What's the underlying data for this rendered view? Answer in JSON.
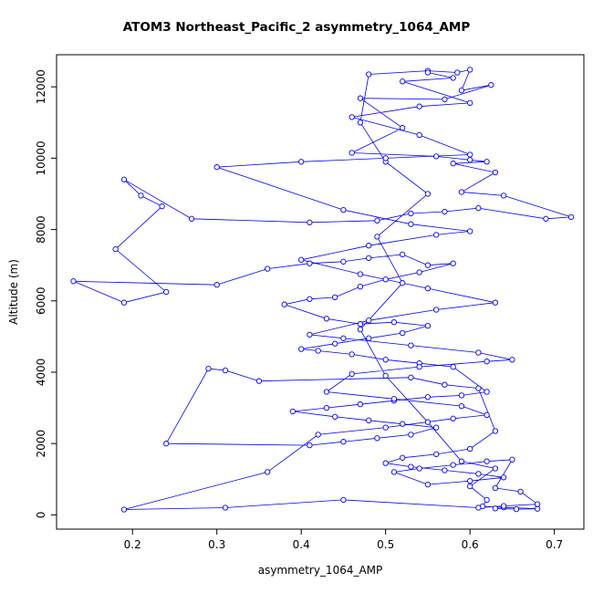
{
  "title": "ATOM3 Northeast_Pacific_2 asymmetry_1064_AMP",
  "chart_data": {
    "type": "line",
    "title": "ATOM3 Northeast_Pacific_2 asymmetry_1064_AMP",
    "xlabel": "asymmetry_1064_AMP",
    "ylabel": "Altitude (m)",
    "xlim": [
      0.11,
      0.735
    ],
    "ylim": [
      -400,
      12900
    ],
    "x_ticks": [
      "0.2",
      "0.3",
      "0.4",
      "0.5",
      "0.6",
      "0.7"
    ],
    "y_ticks": [
      "0",
      "2000",
      "4000",
      "6000",
      "8000",
      "10000",
      "12000"
    ],
    "grid": "off",
    "legend": "none",
    "marker": "open-circle",
    "series_color": "#0000FF",
    "points": [
      [
        0.63,
        180
      ],
      [
        0.655,
        160
      ],
      [
        0.68,
        170
      ],
      [
        0.64,
        210
      ],
      [
        0.615,
        240
      ],
      [
        0.62,
        420
      ],
      [
        0.6,
        800
      ],
      [
        0.63,
        1300
      ],
      [
        0.59,
        1500
      ],
      [
        0.55,
        2600
      ],
      [
        0.5,
        3900
      ],
      [
        0.47,
        5200
      ],
      [
        0.52,
        6500
      ],
      [
        0.49,
        7800
      ],
      [
        0.55,
        9000
      ],
      [
        0.5,
        9900
      ],
      [
        0.47,
        11000
      ],
      [
        0.48,
        12350
      ],
      [
        0.55,
        12450
      ],
      [
        0.585,
        12400
      ],
      [
        0.6,
        12480
      ],
      [
        0.59,
        11900
      ],
      [
        0.625,
        12050
      ],
      [
        0.57,
        11650
      ],
      [
        0.47,
        11680
      ],
      [
        0.52,
        10850
      ],
      [
        0.46,
        10150
      ],
      [
        0.56,
        10050
      ],
      [
        0.6,
        9950
      ],
      [
        0.62,
        9900
      ],
      [
        0.58,
        9850
      ],
      [
        0.63,
        9600
      ],
      [
        0.59,
        9050
      ],
      [
        0.64,
        8950
      ],
      [
        0.72,
        8350
      ],
      [
        0.69,
        8300
      ],
      [
        0.61,
        8600
      ],
      [
        0.57,
        8500
      ],
      [
        0.53,
        8450
      ],
      [
        0.49,
        8250
      ],
      [
        0.41,
        8200
      ],
      [
        0.27,
        8300
      ],
      [
        0.19,
        9400
      ],
      [
        0.21,
        8950
      ],
      [
        0.235,
        8650
      ],
      [
        0.18,
        7450
      ],
      [
        0.24,
        6250
      ],
      [
        0.19,
        5950
      ],
      [
        0.13,
        6550
      ],
      [
        0.3,
        6450
      ],
      [
        0.36,
        6900
      ],
      [
        0.41,
        7050
      ],
      [
        0.45,
        7100
      ],
      [
        0.48,
        7200
      ],
      [
        0.52,
        7300
      ],
      [
        0.55,
        7000
      ],
      [
        0.58,
        7050
      ],
      [
        0.54,
        6800
      ],
      [
        0.5,
        6600
      ],
      [
        0.47,
        6400
      ],
      [
        0.44,
        6100
      ],
      [
        0.41,
        6050
      ],
      [
        0.38,
        5900
      ],
      [
        0.43,
        5500
      ],
      [
        0.47,
        5350
      ],
      [
        0.51,
        5400
      ],
      [
        0.55,
        5300
      ],
      [
        0.52,
        5100
      ],
      [
        0.48,
        4950
      ],
      [
        0.44,
        4800
      ],
      [
        0.4,
        4650
      ],
      [
        0.42,
        4600
      ],
      [
        0.46,
        4500
      ],
      [
        0.5,
        4350
      ],
      [
        0.54,
        4250
      ],
      [
        0.58,
        4150
      ],
      [
        0.62,
        3450
      ],
      [
        0.59,
        3350
      ],
      [
        0.55,
        3300
      ],
      [
        0.51,
        3200
      ],
      [
        0.47,
        3100
      ],
      [
        0.43,
        3000
      ],
      [
        0.39,
        2900
      ],
      [
        0.44,
        2750
      ],
      [
        0.48,
        2650
      ],
      [
        0.52,
        2550
      ],
      [
        0.56,
        2450
      ],
      [
        0.53,
        2250
      ],
      [
        0.49,
        2150
      ],
      [
        0.45,
        2050
      ],
      [
        0.41,
        1950
      ],
      [
        0.24,
        2000
      ],
      [
        0.29,
        4100
      ],
      [
        0.31,
        4050
      ],
      [
        0.35,
        3750
      ],
      [
        0.53,
        3850
      ],
      [
        0.57,
        3650
      ],
      [
        0.61,
        3550
      ],
      [
        0.63,
        2350
      ],
      [
        0.6,
        1850
      ],
      [
        0.56,
        1700
      ],
      [
        0.52,
        1600
      ],
      [
        0.5,
        1450
      ],
      [
        0.53,
        1350
      ],
      [
        0.57,
        1250
      ],
      [
        0.61,
        1150
      ],
      [
        0.64,
        1050
      ],
      [
        0.6,
        950
      ],
      [
        0.55,
        850
      ],
      [
        0.51,
        1200
      ],
      [
        0.54,
        1300
      ],
      [
        0.58,
        1400
      ],
      [
        0.62,
        1500
      ],
      [
        0.65,
        1550
      ],
      [
        0.63,
        750
      ],
      [
        0.66,
        650
      ],
      [
        0.68,
        300
      ],
      [
        0.64,
        250
      ],
      [
        0.61,
        200
      ],
      [
        0.45,
        420
      ],
      [
        0.31,
        200
      ],
      [
        0.19,
        150
      ],
      [
        0.36,
        1200
      ],
      [
        0.42,
        2250
      ],
      [
        0.5,
        2450
      ],
      [
        0.58,
        2700
      ],
      [
        0.62,
        2800
      ],
      [
        0.59,
        3050
      ],
      [
        0.51,
        3250
      ],
      [
        0.43,
        3450
      ],
      [
        0.46,
        3950
      ],
      [
        0.54,
        4150
      ],
      [
        0.62,
        4300
      ],
      [
        0.65,
        4350
      ],
      [
        0.61,
        4550
      ],
      [
        0.53,
        4750
      ],
      [
        0.45,
        4950
      ],
      [
        0.41,
        5050
      ],
      [
        0.48,
        5450
      ],
      [
        0.56,
        5750
      ],
      [
        0.63,
        5950
      ],
      [
        0.55,
        6350
      ],
      [
        0.47,
        6750
      ],
      [
        0.4,
        7150
      ],
      [
        0.48,
        7550
      ],
      [
        0.56,
        7850
      ],
      [
        0.6,
        7950
      ],
      [
        0.53,
        8150
      ],
      [
        0.45,
        8550
      ],
      [
        0.3,
        9750
      ],
      [
        0.4,
        9900
      ],
      [
        0.5,
        10000
      ],
      [
        0.6,
        10100
      ],
      [
        0.54,
        10650
      ],
      [
        0.46,
        11150
      ],
      [
        0.54,
        11450
      ],
      [
        0.6,
        11550
      ],
      [
        0.52,
        12150
      ],
      [
        0.58,
        12250
      ],
      [
        0.55,
        12400
      ]
    ]
  }
}
